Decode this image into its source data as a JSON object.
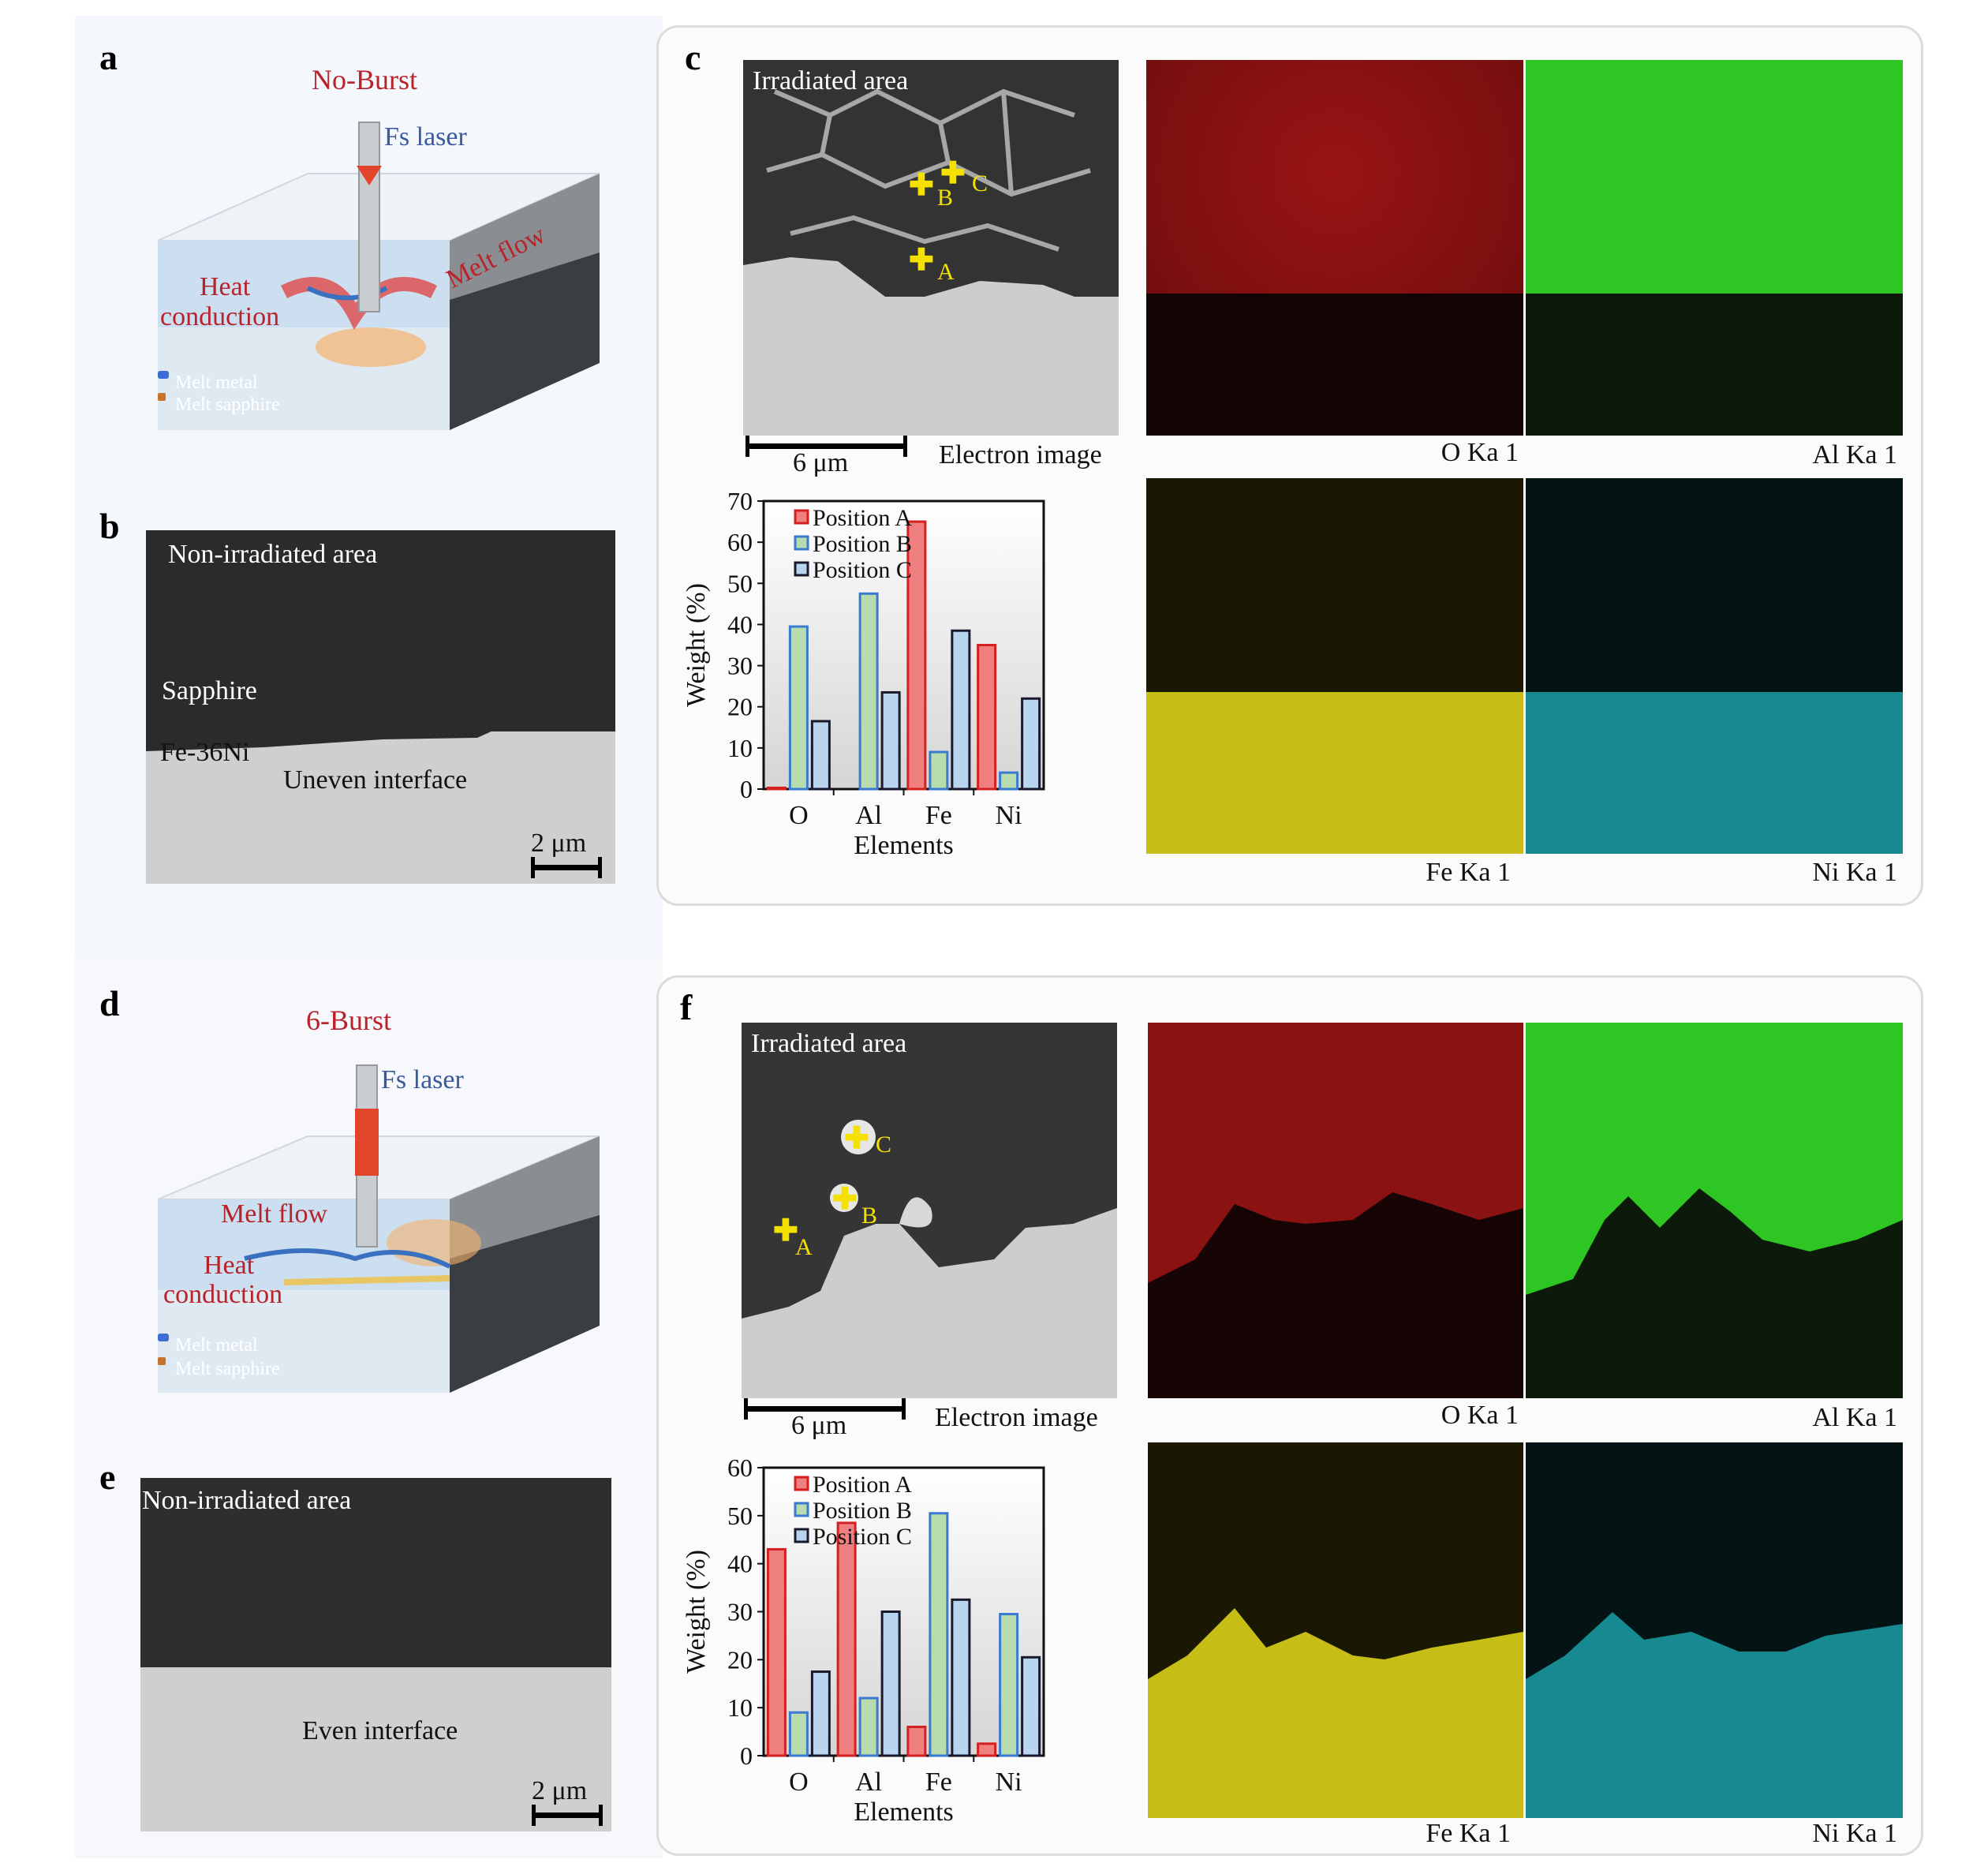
{
  "panels": {
    "a": {
      "letter": "a",
      "title": "No-Burst",
      "laser": "Fs laser",
      "heat": "Heat",
      "conduction": "conduction",
      "melt_flow": "Melt flow",
      "legend_metal": "Melt metal",
      "legend_sapphire": "Melt sapphire"
    },
    "b": {
      "letter": "b",
      "region": "Non-irradiated area",
      "sapphire": "Sapphire",
      "alloy": "Fe-36Ni",
      "interface": "Uneven interface",
      "scale": "2 μm"
    },
    "c": {
      "letter": "c",
      "region": "Irradiated area",
      "scale": "6 μm",
      "image_label": "Electron image",
      "points": [
        "A",
        "B",
        "C"
      ],
      "maps": [
        "O Ka 1",
        "Al Ka 1",
        "Fe Ka 1",
        "Ni Ka 1"
      ]
    },
    "d": {
      "letter": "d",
      "title": "6-Burst",
      "laser": "Fs laser",
      "melt_flow": "Melt flow",
      "heat": "Heat",
      "conduction": "conduction",
      "legend_metal": "Melt metal",
      "legend_sapphire": "Melt sapphire"
    },
    "e": {
      "letter": "e",
      "region": "Non-irradiated area",
      "interface": "Even interface",
      "scale": "2 μm"
    },
    "f": {
      "letter": "f",
      "region": "Irradiated area",
      "scale": "6 μm",
      "image_label": "Electron image",
      "points": [
        "A",
        "B",
        "C"
      ],
      "maps": [
        "O Ka 1",
        "Al Ka 1",
        "Fe Ka 1",
        "Ni Ka 1"
      ]
    }
  },
  "colors": {
    "pos_a": "#f08080",
    "pos_a_edge": "#d42020",
    "pos_b": "#b8dcae",
    "pos_b_edge": "#3a7ad0",
    "pos_c": "#b9d4ee",
    "pos_c_edge": "#1a1a2e",
    "map_o": "#d61a1a",
    "map_al": "#37e02a",
    "map_fe": "#e6dc1e",
    "map_ni": "#20c8c8"
  },
  "chart_data": [
    {
      "type": "bar",
      "categories": [
        "O",
        "Al",
        "Fe",
        "Ni"
      ],
      "xlabel": "Elements",
      "ylabel": "Weight (%)",
      "ylim": [
        0,
        70
      ],
      "yticks": [
        0,
        10,
        20,
        30,
        40,
        50,
        60,
        70
      ],
      "series": [
        {
          "name": "Position A",
          "values": [
            0.3,
            0,
            65,
            35
          ]
        },
        {
          "name": "Position B",
          "values": [
            39.5,
            47.5,
            9,
            4
          ]
        },
        {
          "name": "Position C",
          "values": [
            16.5,
            23.5,
            38.5,
            22
          ]
        }
      ]
    },
    {
      "type": "bar",
      "categories": [
        "O",
        "Al",
        "Fe",
        "Ni"
      ],
      "xlabel": "Elements",
      "ylabel": "Weight (%)",
      "ylim": [
        0,
        60
      ],
      "yticks": [
        0,
        10,
        20,
        30,
        40,
        50,
        60
      ],
      "series": [
        {
          "name": "Position A",
          "values": [
            43,
            48.5,
            6,
            2.5
          ]
        },
        {
          "name": "Position B",
          "values": [
            9,
            12,
            50.5,
            29.5
          ]
        },
        {
          "name": "Position C",
          "values": [
            17.5,
            30,
            32.5,
            20.5
          ]
        }
      ]
    }
  ]
}
